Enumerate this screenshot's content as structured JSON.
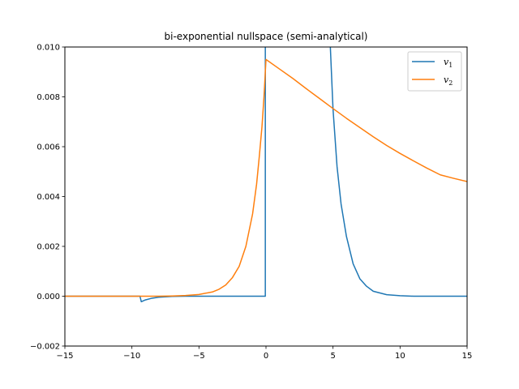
{
  "chart_data": {
    "type": "line",
    "title": "bi-exponential nullspace (semi-analytical)",
    "xlabel": "",
    "ylabel": "",
    "xlim": [
      -15,
      15
    ],
    "ylim": [
      -0.002,
      0.01
    ],
    "x_ticks": [
      -15,
      -10,
      -5,
      0,
      5,
      10,
      15
    ],
    "x_tick_labels": [
      "−15",
      "−10",
      "−5",
      "0",
      "5",
      "10",
      "15"
    ],
    "y_ticks": [
      -0.002,
      0.0,
      0.002,
      0.004,
      0.006,
      0.008,
      0.01
    ],
    "y_tick_labels": [
      "−0.002",
      "0.000",
      "0.002",
      "0.004",
      "0.006",
      "0.008",
      "0.010"
    ],
    "grid": false,
    "legend_position": "top-right",
    "series": [
      {
        "name": "v",
        "subscript": "1",
        "color": "#1f77b4",
        "points": [
          [
            -15,
            0
          ],
          [
            -9.4,
            0
          ],
          [
            -9.3,
            -0.00022
          ],
          [
            -9.0,
            -0.00015
          ],
          [
            -8.5,
            -8e-05
          ],
          [
            -8.0,
            -4e-05
          ],
          [
            -7.0,
            -1e-05
          ],
          [
            -6.0,
            0
          ],
          [
            -0.05,
            0
          ],
          [
            -0.05,
            0.0105
          ],
          [
            4.75,
            0.0105
          ],
          [
            4.8,
            0.01
          ],
          [
            5.0,
            0.0075
          ],
          [
            5.3,
            0.0052
          ],
          [
            5.6,
            0.0037
          ],
          [
            6.0,
            0.0024
          ],
          [
            6.5,
            0.0013
          ],
          [
            7.0,
            0.0007
          ],
          [
            7.5,
            0.0004
          ],
          [
            8.0,
            0.0002
          ],
          [
            9.0,
            6e-05
          ],
          [
            10.0,
            2e-05
          ],
          [
            11.0,
            0
          ],
          [
            15,
            0
          ]
        ]
      },
      {
        "name": "v",
        "subscript": "2",
        "color": "#ff7f0e",
        "points": [
          [
            -15,
            0
          ],
          [
            -8.0,
            0
          ],
          [
            -7.0,
            1e-05
          ],
          [
            -6.0,
            3e-05
          ],
          [
            -5.0,
            7e-05
          ],
          [
            -4.0,
            0.00017
          ],
          [
            -3.5,
            0.00028
          ],
          [
            -3.0,
            0.00045
          ],
          [
            -2.5,
            0.00075
          ],
          [
            -2.0,
            0.0012
          ],
          [
            -1.5,
            0.002
          ],
          [
            -1.0,
            0.0033
          ],
          [
            -0.7,
            0.0045
          ],
          [
            -0.5,
            0.0056
          ],
          [
            -0.3,
            0.0068
          ],
          [
            -0.15,
            0.008
          ],
          [
            -0.05,
            0.009
          ],
          [
            0.0,
            0.0095
          ],
          [
            1,
            0.00912
          ],
          [
            2,
            0.00874
          ],
          [
            3,
            0.00833
          ],
          [
            4,
            0.00793
          ],
          [
            5,
            0.00753
          ],
          [
            6,
            0.00714
          ],
          [
            7,
            0.00677
          ],
          [
            8,
            0.0064
          ],
          [
            9,
            0.00605
          ],
          [
            10,
            0.00573
          ],
          [
            11,
            0.00543
          ],
          [
            12,
            0.00514
          ],
          [
            13,
            0.00487
          ],
          [
            14,
            0.00473
          ],
          [
            15,
            0.0046
          ]
        ]
      }
    ]
  }
}
